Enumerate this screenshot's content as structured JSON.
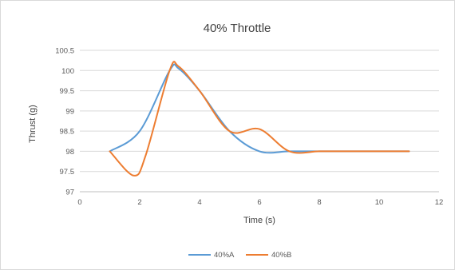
{
  "chart_data": {
    "type": "line",
    "title": "40% Throttle",
    "xlabel": "Time (s)",
    "ylabel": "Thrust (g)",
    "xlim": [
      0,
      12
    ],
    "ylim": [
      97,
      100.5
    ],
    "x_ticks": [
      "0",
      "2",
      "4",
      "6",
      "8",
      "10",
      "12"
    ],
    "y_ticks": [
      "97",
      "97.5",
      "98",
      "98.5",
      "99",
      "99.5",
      "100",
      "100.5"
    ],
    "grid": "horizontal",
    "legend": "bottom",
    "series": [
      {
        "name": "40%A",
        "color": "#5B9BD5",
        "points": [
          [
            1,
            98
          ],
          [
            2,
            98.5
          ],
          [
            3,
            100
          ],
          [
            3.3,
            100.05
          ],
          [
            4,
            99.5
          ],
          [
            5,
            98.5
          ],
          [
            6,
            98
          ],
          [
            7,
            98
          ],
          [
            8,
            98
          ],
          [
            9,
            98
          ],
          [
            10,
            98
          ],
          [
            11,
            98
          ]
        ]
      },
      {
        "name": "40%B",
        "color": "#ED7D31",
        "points": [
          [
            1,
            98
          ],
          [
            1.8,
            97.4
          ],
          [
            2.2,
            97.9
          ],
          [
            3,
            100
          ],
          [
            3.3,
            100.1
          ],
          [
            4,
            99.5
          ],
          [
            5,
            98.5
          ],
          [
            6,
            98.55
          ],
          [
            7,
            98
          ],
          [
            8,
            98
          ],
          [
            9,
            98
          ],
          [
            10,
            98
          ],
          [
            11,
            98
          ]
        ]
      }
    ]
  }
}
